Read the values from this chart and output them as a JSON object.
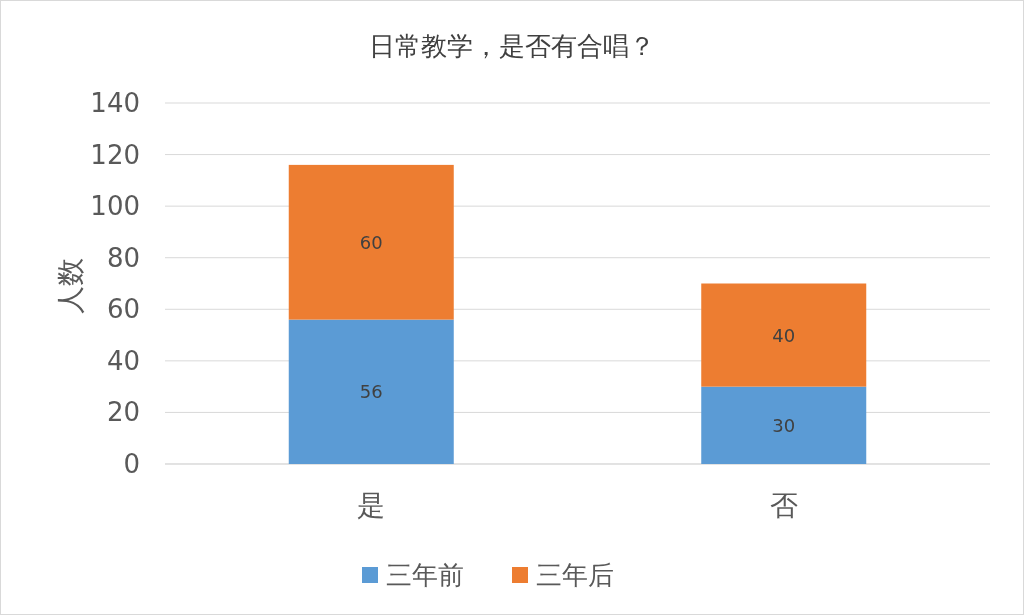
{
  "chart_data": {
    "type": "bar",
    "title": "日常教学，是否有合唱？",
    "ylabel": "人数",
    "categories": [
      "是",
      "否"
    ],
    "stacked": true,
    "series": [
      {
        "name": "三年前",
        "color": "#5b9bd5",
        "values": [
          56,
          30
        ]
      },
      {
        "name": "三年后",
        "color": "#ed7d31",
        "values": [
          60,
          40
        ]
      }
    ],
    "ylim": [
      0,
      140
    ],
    "yticks": [
      0,
      20,
      40,
      60,
      80,
      100,
      120,
      140
    ],
    "grid": "y",
    "legend": "bottom",
    "data_labels": true
  }
}
